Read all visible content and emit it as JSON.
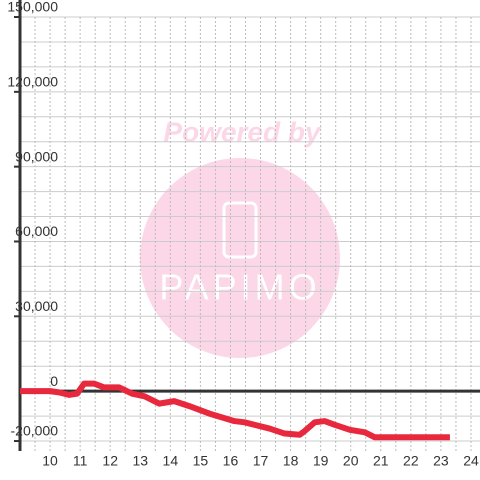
{
  "chart_data": {
    "type": "line",
    "watermark": "Powered by",
    "watermark_logo": "PAPIMO",
    "x": [
      9,
      10,
      10.3,
      10.63,
      10.9,
      11.13,
      11.47,
      11.8,
      12.3,
      12.73,
      13.13,
      13.63,
      14.13,
      14.63,
      15.3,
      16.13,
      16.47,
      17.3,
      17.8,
      18.3,
      18.47,
      18.8,
      19.13,
      19.47,
      19.97,
      20.47,
      20.8,
      21.3,
      23.3
    ],
    "series": [
      {
        "color": "#e8283c",
        "values": [
          0,
          0,
          -500,
          -1500,
          -1000,
          3000,
          3000,
          1500,
          1500,
          -1000,
          -2000,
          -5000,
          -4000,
          -6000,
          -9000,
          -12000,
          -12500,
          -15000,
          -17000,
          -17500,
          -16000,
          -12500,
          -12000,
          -13500,
          -15500,
          -16500,
          -18500,
          -18500,
          -18500
        ]
      }
    ],
    "xlim": [
      9,
      24.3
    ],
    "xticks": [
      10,
      11,
      12,
      13,
      14,
      15,
      16,
      17,
      18,
      19,
      20,
      21,
      22,
      23,
      24
    ],
    "xgrid": [
      9.5,
      10,
      10.5,
      11,
      11.5,
      12,
      12.5,
      13,
      13.5,
      14,
      14.5,
      15,
      15.5,
      16,
      16.5,
      17,
      17.5,
      18,
      18.5,
      19,
      19.5,
      20,
      20.5,
      21,
      21.5,
      22,
      22.5,
      23,
      23.5,
      24
    ],
    "ylim": [
      -24000,
      150000
    ],
    "yticks": [
      {
        "value": -20000,
        "label": "-20,000"
      },
      0,
      {
        "value": 30000,
        "label": "30,000"
      },
      {
        "value": 60000,
        "label": "60,000"
      },
      {
        "value": 90000,
        "label": "90,000"
      },
      {
        "value": 120000,
        "label": "120,000"
      },
      {
        "value": 150000,
        "label": "150,000"
      }
    ],
    "ygrid": [
      -20000,
      -10000,
      10000,
      20000,
      30000,
      40000,
      50000,
      60000,
      70000,
      80000,
      90000,
      100000,
      110000,
      120000,
      130000,
      140000,
      150000
    ]
  }
}
